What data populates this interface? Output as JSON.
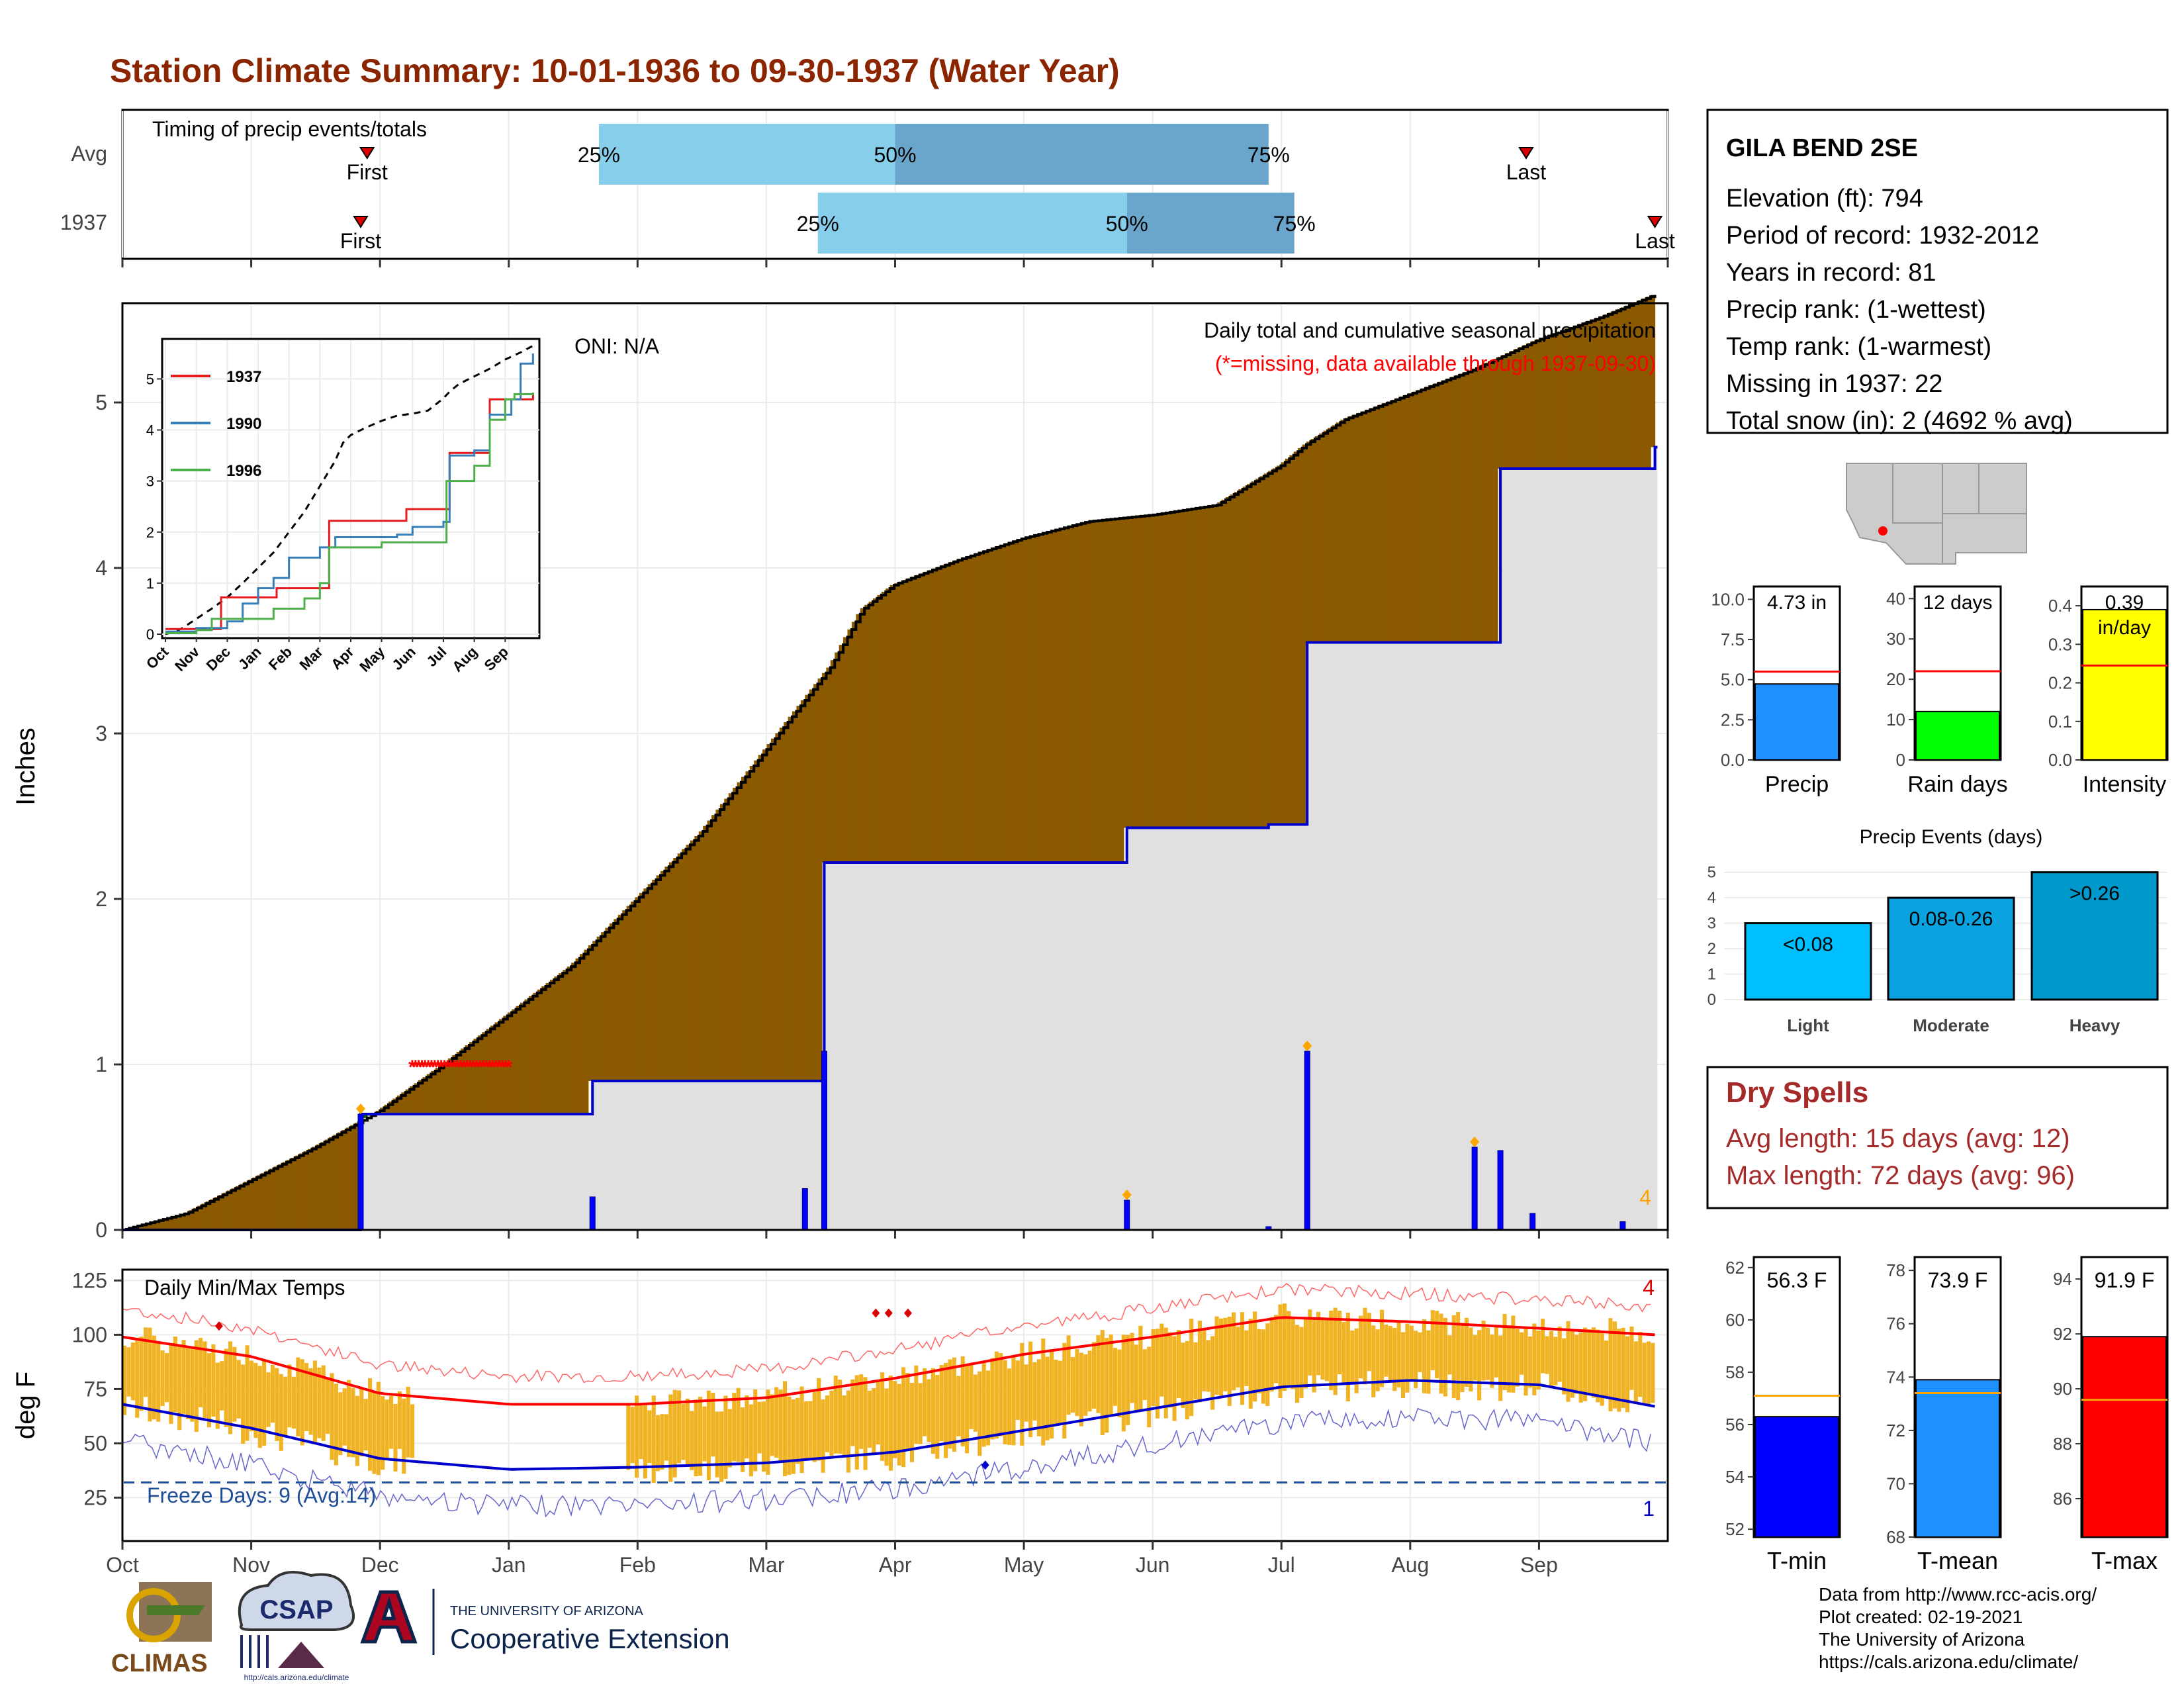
{
  "page": {
    "title": "Station Climate Summary: 10-01-1936 to 09-30-1937 (Water Year)"
  },
  "timing": {
    "label": "Timing of precip events/totals",
    "rows": [
      {
        "name": "Avg",
        "first_label": "First",
        "last_label": "Last",
        "first_month": 1.9,
        "last_month": 10.9,
        "p25": 3.7,
        "p50": 6.0,
        "p75": 8.9
      },
      {
        "name": "1937",
        "first_label": "First",
        "last_label": "Last",
        "first_month": 1.85,
        "last_month": 11.9,
        "p25": 5.4,
        "p50": 7.8,
        "p75": 9.1
      }
    ],
    "pct_labels": [
      "25%",
      "50%",
      "75%"
    ],
    "colors": {
      "q1": "#87ceeb",
      "q2": "#6aa6cc",
      "marker": "#dd0000"
    }
  },
  "precip": {
    "ylabel": "Inches",
    "oni": "ONI: N/A",
    "note_title": "Daily total and cumulative seasonal precipitation",
    "note_missing": "(*=missing, data available through 1937-09-30)",
    "count_label": "4",
    "yticks": [
      "0",
      "1",
      "2",
      "3",
      "4",
      "5"
    ],
    "ylim": [
      0,
      5.6
    ],
    "colors": {
      "above": "#8b5a00",
      "below": "#006400",
      "fill": "#e0e0e0",
      "cum": "#0000cc",
      "bar": "#0000ff",
      "marker": "#ffa500",
      "missing": "#ff0000",
      "avg_line": "#000000"
    }
  },
  "inset": {
    "legend": [
      {
        "name": "1937",
        "color": "#e41a1c"
      },
      {
        "name": "1990",
        "color": "#377eb8"
      },
      {
        "name": "1996",
        "color": "#4daf4a"
      }
    ],
    "yticks": [
      "0",
      "1",
      "2",
      "3",
      "4",
      "5"
    ],
    "xticks": [
      "Oct",
      "Nov",
      "Dec",
      "Jan",
      "Feb",
      "Mar",
      "Apr",
      "May",
      "Jun",
      "Jul",
      "Aug",
      "Sep"
    ]
  },
  "temps": {
    "ylabel": "deg F",
    "label": "Daily Min/Max Temps",
    "freeze_label": "Freeze Days: 9 (Avg:14)",
    "count_top": "4",
    "count_bottom": "1",
    "yticks": [
      "25",
      "50",
      "75",
      "100",
      "125"
    ],
    "ylim": [
      5,
      130
    ],
    "freeze_line": 32,
    "colors": {
      "range": "#f0b323",
      "max_avg": "#ff0000",
      "min_avg": "#0000cc",
      "rec_max": "#ff6666",
      "rec_min": "#6666cc",
      "freeze": "#1f4e99"
    }
  },
  "months": [
    "Oct",
    "Nov",
    "Dec",
    "Jan",
    "Feb",
    "Mar",
    "Apr",
    "May",
    "Jun",
    "Jul",
    "Aug",
    "Sep"
  ],
  "station": {
    "name": "GILA BEND 2SE",
    "lines": [
      "Elevation (ft): 794",
      "Period of record: 1932-2012",
      "Years in record: 81",
      "Precip rank:  (1-wettest)",
      "Temp rank:  (1-warmest)",
      "Missing in 1937: 22",
      "Total snow (in): 2 (4692 % avg)"
    ]
  },
  "small_bars": [
    {
      "name": "Precip",
      "value_label": "4.73 in",
      "value": 4.73,
      "avg": 5.5,
      "ymax": 10.8,
      "yticks": [
        "0.0",
        "2.5",
        "5.0",
        "7.5",
        "10.0"
      ],
      "tickvals": [
        0,
        2.5,
        5,
        7.5,
        10
      ],
      "color": "#1e90ff"
    },
    {
      "name": "Rain days",
      "value_label": "12 days",
      "value": 12,
      "avg": 22,
      "ymax": 43,
      "yticks": [
        "0",
        "10",
        "20",
        "30",
        "40"
      ],
      "tickvals": [
        0,
        10,
        20,
        30,
        40
      ],
      "color": "#00ff00"
    },
    {
      "name": "Intensity",
      "value_label": "0.39",
      "value_label2": "in/day",
      "value": 0.39,
      "avg": 0.245,
      "ymax": 0.45,
      "yticks": [
        "0.0",
        "0.1",
        "0.2",
        "0.3",
        "0.4"
      ],
      "tickvals": [
        0,
        0.1,
        0.2,
        0.3,
        0.4
      ],
      "color": "#ffff00"
    }
  ],
  "events": {
    "title": "Precip Events (days)",
    "categories": [
      "Light",
      "Moderate",
      "Heavy"
    ],
    "labels": [
      "<0.08",
      "0.08-0.26",
      ">0.26"
    ],
    "values": [
      3,
      4,
      5
    ],
    "yticks": [
      "0",
      "1",
      "2",
      "3",
      "4",
      "5"
    ],
    "colors": [
      "#00bfff",
      "#0aa3e0",
      "#0099cc"
    ]
  },
  "dry_spells": {
    "title": "Dry Spells",
    "avg_length": "Avg length: 15 days (avg: 12)",
    "max_length": "Max length: 72 days (avg: 96)",
    "color": "#a52a2a"
  },
  "temp_bars": [
    {
      "name": "T-min",
      "value_label": "56.3 F",
      "value": 56.3,
      "avg": 57.1,
      "ymin": 51.7,
      "ymax": 62.4,
      "yticks": [
        "52",
        "54",
        "56",
        "58",
        "60",
        "62"
      ],
      "tickvals": [
        52,
        54,
        56,
        58,
        60,
        62
      ],
      "color": "#0000ff"
    },
    {
      "name": "T-mean",
      "value_label": "73.9 F",
      "value": 73.9,
      "avg": 73.4,
      "ymin": 68,
      "ymax": 78.5,
      "yticks": [
        "68",
        "70",
        "72",
        "74",
        "76",
        "78"
      ],
      "tickvals": [
        68,
        70,
        72,
        74,
        76,
        78
      ],
      "color": "#1e90ff"
    },
    {
      "name": "T-max",
      "value_label": "91.9 F",
      "value": 91.9,
      "avg": 89.6,
      "ymin": 84.6,
      "ymax": 94.8,
      "yticks": [
        "86",
        "88",
        "90",
        "92",
        "94"
      ],
      "tickvals": [
        86,
        88,
        90,
        92,
        94
      ],
      "color": "#ff0000"
    }
  ],
  "footer": {
    "lines": [
      "Data from http://www.rcc-acis.org/",
      "Plot created: 02-19-2021",
      "The University of Arizona",
      "https://cals.arizona.edu/climate/"
    ],
    "climas": "CLIMAS",
    "csap": "CSAP",
    "csap_url": "http://cals.arizona.edu/climate",
    "ua_small": "THE UNIVERSITY OF ARIZONA",
    "ua_big": "Cooperative Extension"
  },
  "chart_data": {
    "type": "area",
    "title": "Daily total and cumulative seasonal precipitation",
    "ylabel": "Inches",
    "ylim": [
      0,
      5.6
    ],
    "x_months": [
      "Oct",
      "Nov",
      "Dec",
      "Jan",
      "Feb",
      "Mar",
      "Apr",
      "May",
      "Jun",
      "Jul",
      "Aug",
      "Sep"
    ],
    "series": [
      {
        "name": "Average cumulative precipitation (month position, inches)",
        "x": [
          0,
          0.5,
          1,
          1.5,
          2,
          2.5,
          3,
          3.5,
          4,
          4.5,
          5,
          5.5,
          5.75,
          6,
          6.5,
          7,
          7.5,
          8,
          8.5,
          9,
          9.2,
          9.5,
          10,
          10.5,
          11,
          11.5,
          11.9
        ],
        "values": [
          0,
          0.1,
          0.3,
          0.5,
          0.72,
          1.0,
          1.3,
          1.6,
          2.0,
          2.4,
          2.9,
          3.4,
          3.75,
          3.9,
          4.05,
          4.18,
          4.28,
          4.32,
          4.38,
          4.62,
          4.75,
          4.9,
          5.05,
          5.2,
          5.38,
          5.52,
          5.65
        ]
      },
      {
        "name": "1937 cumulative precipitation (month position, inches)",
        "x": [
          0,
          1.85,
          3.65,
          5.3,
          5.45,
          7.8,
          8.9,
          9.2,
          10.5,
          10.7,
          11.9
        ],
        "values": [
          0,
          0.7,
          0.9,
          0.9,
          2.22,
          2.43,
          2.45,
          3.55,
          3.55,
          4.6,
          4.73
        ]
      },
      {
        "name": "Daily precipitation (month position, inches)",
        "x": [
          1.85,
          3.65,
          5.3,
          5.45,
          7.8,
          8.9,
          9.2,
          10.5,
          10.7,
          10.95,
          11.65
        ],
        "values": [
          0.7,
          0.2,
          0.25,
          1.08,
          0.18,
          0.02,
          1.08,
          0.5,
          0.48,
          0.1,
          0.05
        ]
      }
    ],
    "missing_span_months": [
      2.25,
      3.0
    ],
    "temps": {
      "ylabel": "deg F",
      "ylim": [
        5,
        130
      ],
      "avg_max_x": [
        0,
        1,
        2,
        3,
        4,
        5,
        6,
        7,
        8,
        9,
        10,
        11,
        11.9
      ],
      "avg_max": [
        99,
        90,
        73,
        68,
        68,
        71,
        80,
        91,
        99,
        108,
        106,
        103,
        100
      ],
      "avg_min": [
        68,
        57,
        43,
        38,
        39,
        41,
        46,
        56,
        66,
        76,
        79,
        77,
        67
      ]
    }
  }
}
